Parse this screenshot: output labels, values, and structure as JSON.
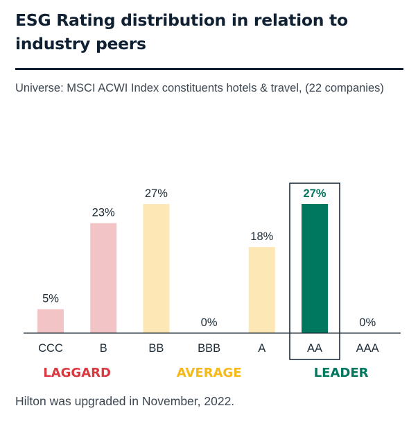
{
  "header": {
    "title": "ESG Rating distribution in relation to industry peers",
    "subtitle": "Universe: MSCI ACWI Index constituents hotels & travel, (22 companies)"
  },
  "chart_data": {
    "type": "bar",
    "categories": [
      "CCC",
      "B",
      "BB",
      "BBB",
      "A",
      "AA",
      "AAA"
    ],
    "values": [
      5,
      23,
      27,
      0,
      18,
      27,
      0
    ],
    "value_labels": [
      "5%",
      "23%",
      "27%",
      "0%",
      "18%",
      "27%",
      "0%"
    ],
    "highlighted_category": "AA",
    "bar_colors": [
      "#f2c4c6",
      "#f2c4c6",
      "#fde7b5",
      "#fde7b5",
      "#fde7b5",
      "#00775f",
      "#00775f"
    ],
    "groups": [
      {
        "label": "LAGGARD",
        "categories": [
          "CCC",
          "B"
        ],
        "color": "#d9393f"
      },
      {
        "label": "AVERAGE",
        "categories": [
          "BB",
          "BBB",
          "A"
        ],
        "color": "#f7b81a"
      },
      {
        "label": "LEADER",
        "categories": [
          "AA",
          "AAA"
        ],
        "color": "#00775f"
      }
    ],
    "highlight_label_color": "#00775f",
    "grid": false
  },
  "footnote": "Hilton was upgraded in November, 2022."
}
